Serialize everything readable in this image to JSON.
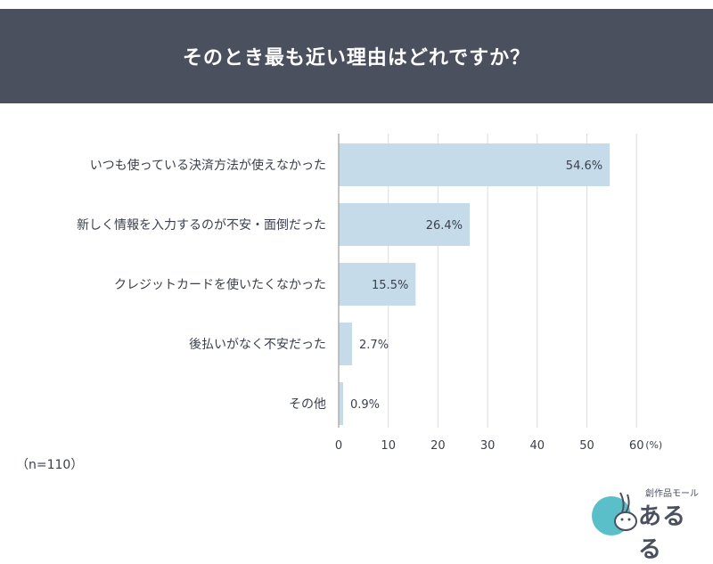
{
  "title": "そのとき最も近い理由はどれですか？",
  "footnote": "（n=110）",
  "logo": {
    "sub": "創作品モール",
    "name": "あるる"
  },
  "colors": {
    "header_bg": "#4a505e",
    "bar": "#c5dbea",
    "grid": "#dcdcdc",
    "axis": "#b0b0b0",
    "logo_circle": "#5bbfc9"
  },
  "chart_data": {
    "type": "bar",
    "orientation": "horizontal",
    "categories": [
      "いつも使っている決済方法が使えなかった",
      "新しく情報を入力するのが不安・面倒だった",
      "クレジットカードを使いたくなかった",
      "後払いがなく不安だった",
      "その他"
    ],
    "values": [
      54.6,
      26.4,
      15.5,
      2.7,
      0.9
    ],
    "value_labels": [
      "54.6%",
      "26.4%",
      "15.5%",
      "2.7%",
      "0.9%"
    ],
    "xlim": [
      0,
      60
    ],
    "xticks": [
      0,
      10,
      20,
      30,
      40,
      50,
      60
    ],
    "unit": "(%)",
    "grid": true
  }
}
